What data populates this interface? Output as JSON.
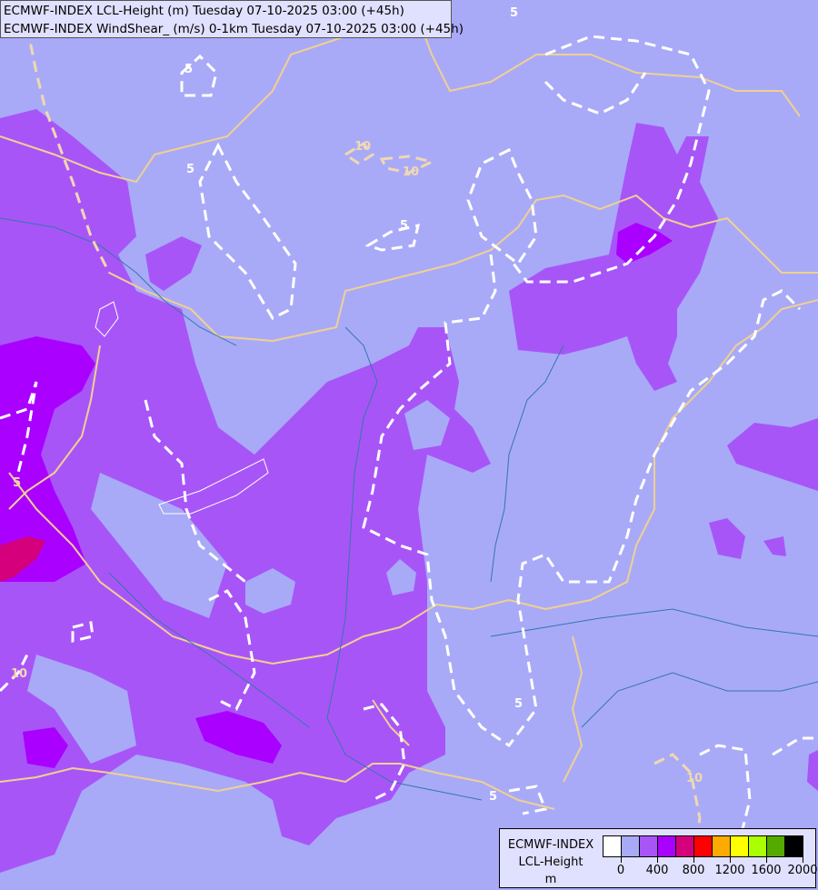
{
  "title": {
    "line1": "ECMWF-INDEX LCL-Height (m) Tuesday 07-10-2025 03:00 (+45h)",
    "line2": "ECMWF-INDEX WindShear_ (m/s) 0-1km Tuesday 07-10-2025 03:00 (+45h)"
  },
  "legend": {
    "title_line1": "ECMWF-INDEX",
    "title_line2": "LCL-Height",
    "unit": "m",
    "colors": [
      "#ffffff",
      "#a8aaf8",
      "#a855f8",
      "#aa00ff",
      "#d4007c",
      "#ff0000",
      "#ffaa00",
      "#ffff00",
      "#aaff00",
      "#55aa00",
      "#000000"
    ],
    "tick_labels": [
      "0",
      "400",
      "800",
      "1200",
      "1600",
      "2000"
    ]
  },
  "map": {
    "background_color": "#a8aaf8",
    "border_color": "#f0d090",
    "river_color": "#3377aa",
    "contour_color": "#ffffff",
    "contour_labels": [
      "5",
      "5",
      "10",
      "5",
      "5",
      "5",
      "10",
      "5",
      "5",
      "10",
      "10",
      "5"
    ]
  }
}
